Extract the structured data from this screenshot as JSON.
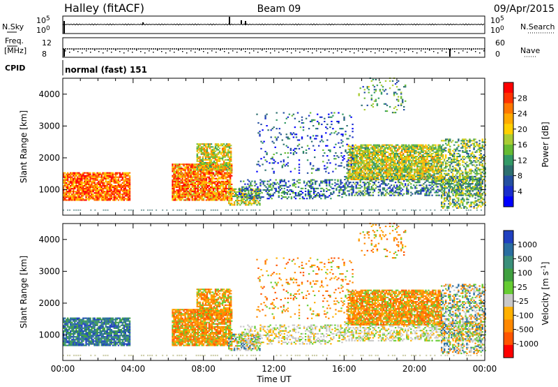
{
  "header": {
    "station": "Halley (fitACF)",
    "beam": "Beam 09",
    "date": "09/Apr/2015"
  },
  "chart_data": [
    {
      "type": "line",
      "title": "",
      "left_label": "N.Sky",
      "right_label": "N.Search",
      "left_ticks": [
        "10^5",
        "10^0"
      ],
      "right_ticks": [
        "10^5",
        "10^0"
      ]
    },
    {
      "type": "line",
      "left_label_top": "Freq.",
      "left_label_bottom": "[MHz]",
      "left_ticks": [
        "12",
        "8"
      ],
      "right_label": "Nave",
      "right_ticks": [
        "60",
        "0"
      ],
      "cpid_label": "CPID",
      "cpid_text": "normal (fast) 151"
    },
    {
      "type": "heatmap",
      "quantity": "Power",
      "ylabel": "Slant Range [km]",
      "ylim": [
        200,
        4500
      ],
      "yticks": [
        1000,
        2000,
        3000,
        4000
      ],
      "colorbar_label": "Power [dB]",
      "colorbar_ticks": [
        "28",
        "24",
        "20",
        "16",
        "12",
        "8",
        "4"
      ],
      "colorbar_colors": [
        "#ff0000",
        "#ff3300",
        "#ff7700",
        "#ffaa00",
        "#ffd000",
        "#aacc33",
        "#66bb33",
        "#339966",
        "#2d6f6f",
        "#244fa0",
        "#1a2ecc",
        "#0000ff"
      ]
    },
    {
      "type": "heatmap",
      "quantity": "Velocity",
      "ylabel": "Slant Range [km]",
      "ylim": [
        200,
        4500
      ],
      "yticks": [
        1000,
        2000,
        3000,
        4000
      ],
      "colorbar_label": "Velocity [m s^-1]",
      "colorbar_ticks": [
        "1000",
        "500",
        "100",
        "25",
        "-25",
        "-100",
        "-500",
        "-1000"
      ],
      "colorbar_colors": [
        "#2040c0",
        "#2a6ea0",
        "#3a8f7a",
        "#40a040",
        "#66cc33",
        "#c8c8c8",
        "#ffb000",
        "#ff8800",
        "#ff5500",
        "#ff0000"
      ]
    }
  ],
  "xaxis": {
    "label": "Time UT",
    "ticks": [
      "00:00",
      "04:00",
      "08:00",
      "12:00",
      "16:00",
      "20:00",
      "00:00"
    ]
  }
}
